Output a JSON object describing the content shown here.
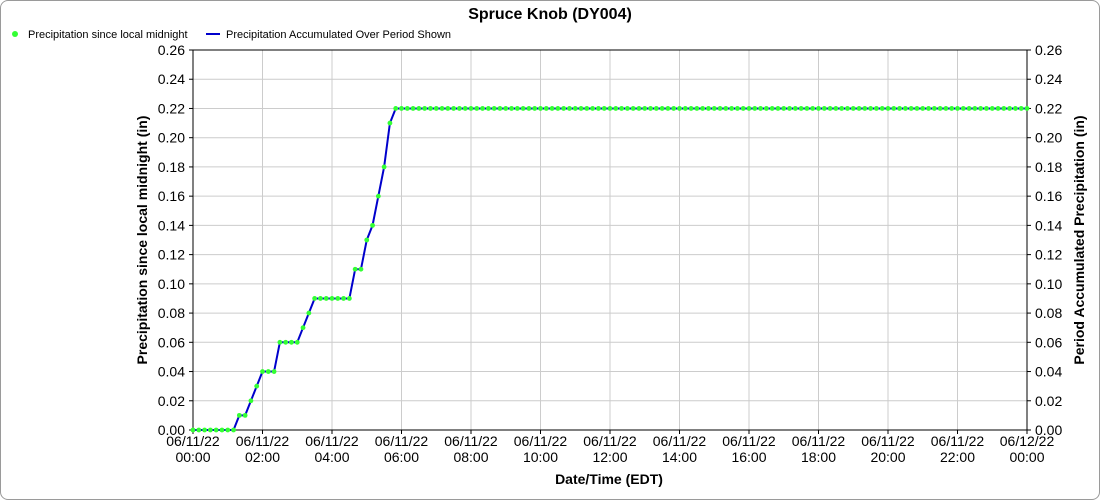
{
  "colors": {
    "marker": "#33ff33",
    "line": "#0000cc",
    "grid": "#cccccc",
    "axis": "#000000"
  },
  "chart_data": {
    "type": "line",
    "title": "Spruce Knob (DY004)",
    "legend": {
      "placement": "top-left",
      "entries": [
        {
          "label": "Precipitation since local midnight",
          "symbol": "marker"
        },
        {
          "label": "Precipitation Accumulated Over Period Shown",
          "symbol": "line"
        }
      ]
    },
    "xlabel": "Date/Time (EDT)",
    "ylabel_left": "Precipitation since local midnight (in)",
    "ylabel_right": "Period Accumulated Precipitation (in)",
    "xlim_hours": [
      0,
      24
    ],
    "ylim": [
      0,
      0.26
    ],
    "y_ticks": [
      "0.00",
      "0.02",
      "0.04",
      "0.06",
      "0.08",
      "0.10",
      "0.12",
      "0.14",
      "0.16",
      "0.18",
      "0.20",
      "0.22",
      "0.24",
      "0.26"
    ],
    "x_ticks": [
      {
        "date": "06/11/22",
        "time": "00:00"
      },
      {
        "date": "06/11/22",
        "time": "02:00"
      },
      {
        "date": "06/11/22",
        "time": "04:00"
      },
      {
        "date": "06/11/22",
        "time": "06:00"
      },
      {
        "date": "06/11/22",
        "time": "08:00"
      },
      {
        "date": "06/11/22",
        "time": "10:00"
      },
      {
        "date": "06/11/22",
        "time": "12:00"
      },
      {
        "date": "06/11/22",
        "time": "14:00"
      },
      {
        "date": "06/11/22",
        "time": "16:00"
      },
      {
        "date": "06/11/22",
        "time": "18:00"
      },
      {
        "date": "06/11/22",
        "time": "20:00"
      },
      {
        "date": "06/11/22",
        "time": "22:00"
      },
      {
        "date": "06/12/22",
        "time": "00:00"
      }
    ],
    "grid": true,
    "series": [
      {
        "name": "Precipitation since local midnight",
        "interval_minutes": 10,
        "start_time": "06/11/22 00:00",
        "values": [
          0.0,
          0.0,
          0.0,
          0.0,
          0.0,
          0.0,
          0.0,
          0.0,
          0.01,
          0.01,
          0.02,
          0.03,
          0.04,
          0.04,
          0.04,
          0.06,
          0.06,
          0.06,
          0.06,
          0.07,
          0.08,
          0.09,
          0.09,
          0.09,
          0.09,
          0.09,
          0.09,
          0.09,
          0.11,
          0.11,
          0.13,
          0.14,
          0.16,
          0.18,
          0.21,
          0.22,
          0.22,
          0.22,
          0.22,
          0.22,
          0.22,
          0.22,
          0.22,
          0.22,
          0.22,
          0.22,
          0.22,
          0.22,
          0.22,
          0.22,
          0.22,
          0.22,
          0.22,
          0.22,
          0.22,
          0.22,
          0.22,
          0.22,
          0.22,
          0.22,
          0.22,
          0.22,
          0.22,
          0.22,
          0.22,
          0.22,
          0.22,
          0.22,
          0.22,
          0.22,
          0.22,
          0.22,
          0.22,
          0.22,
          0.22,
          0.22,
          0.22,
          0.22,
          0.22,
          0.22,
          0.22,
          0.22,
          0.22,
          0.22,
          0.22,
          0.22,
          0.22,
          0.22,
          0.22,
          0.22,
          0.22,
          0.22,
          0.22,
          0.22,
          0.22,
          0.22,
          0.22,
          0.22,
          0.22,
          0.22,
          0.22,
          0.22,
          0.22,
          0.22,
          0.22,
          0.22,
          0.22,
          0.22,
          0.22,
          0.22,
          0.22,
          0.22,
          0.22,
          0.22,
          0.22,
          0.22,
          0.22,
          0.22,
          0.22,
          0.22,
          0.22,
          0.22,
          0.22,
          0.22,
          0.22,
          0.22,
          0.22,
          0.22,
          0.22,
          0.22,
          0.22,
          0.22,
          0.22,
          0.22,
          0.22,
          0.22,
          0.22,
          0.22,
          0.22,
          0.22,
          0.22,
          0.22,
          0.22,
          0.22,
          0.22
        ]
      },
      {
        "name": "Precipitation Accumulated Over Period Shown",
        "same_as_series": 0
      }
    ]
  }
}
